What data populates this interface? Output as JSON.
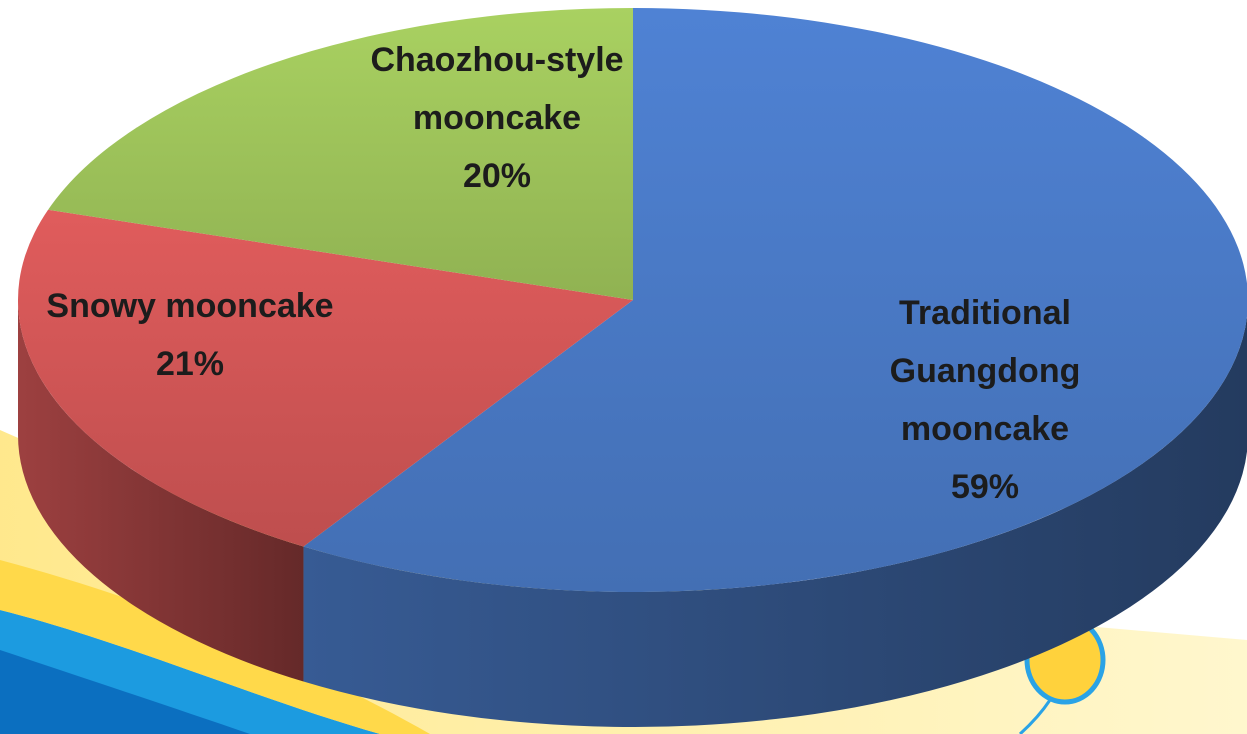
{
  "chart_data": {
    "type": "pie",
    "categories": [
      "Traditional Guangdong mooncake",
      "Snowy mooncake",
      "Chaozhou-style mooncake"
    ],
    "values": [
      59,
      21,
      20
    ],
    "value_labels": [
      "59%",
      "21%",
      "20%"
    ],
    "colors": [
      "#4f82d4",
      "#e05c5c",
      "#a9d161"
    ]
  }
}
